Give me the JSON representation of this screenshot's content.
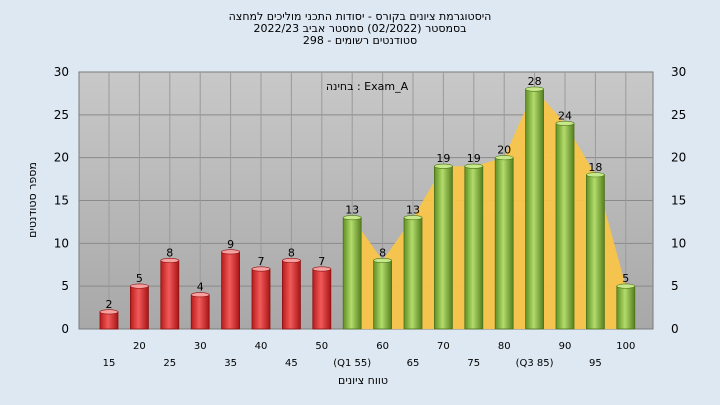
{
  "chart_data": {
    "type": "bar",
    "title_lines": [
      "היסטוגרמת ציונים בקורס - יסודות התכני מוליכים למחצה",
      "בסמסטר   (02/2022)   סמסטר אביב 2022/23",
      "סטודנטים רשומים - 298"
    ],
    "annotation": "בחינה : Exam_A",
    "ylabel": "מספר סטודנטים",
    "xlabel": "טווח ציונים",
    "ylim": [
      0,
      30
    ],
    "yticks": [
      "0",
      "5",
      "10",
      "15",
      "20",
      "25",
      "30"
    ],
    "categories": [
      "15",
      "20",
      "25",
      "30",
      "35",
      "40",
      "45",
      "50",
      "(Q1 55)",
      "60",
      "65",
      "70",
      "75",
      "80",
      "(Q3 85)",
      "90",
      "95",
      "100"
    ],
    "values": [
      2,
      5,
      8,
      4,
      9,
      7,
      8,
      7,
      13,
      8,
      13,
      19,
      19,
      20,
      28,
      24,
      18,
      5
    ],
    "fail_threshold_index": 8,
    "colors": {
      "fail_bar": "#e33a3a",
      "pass_bar": "#8cbf45",
      "area": "#f9c54a",
      "plot_bg": "#b6b6b6",
      "frame_bg": "#dde8f3"
    },
    "grid": true
  }
}
